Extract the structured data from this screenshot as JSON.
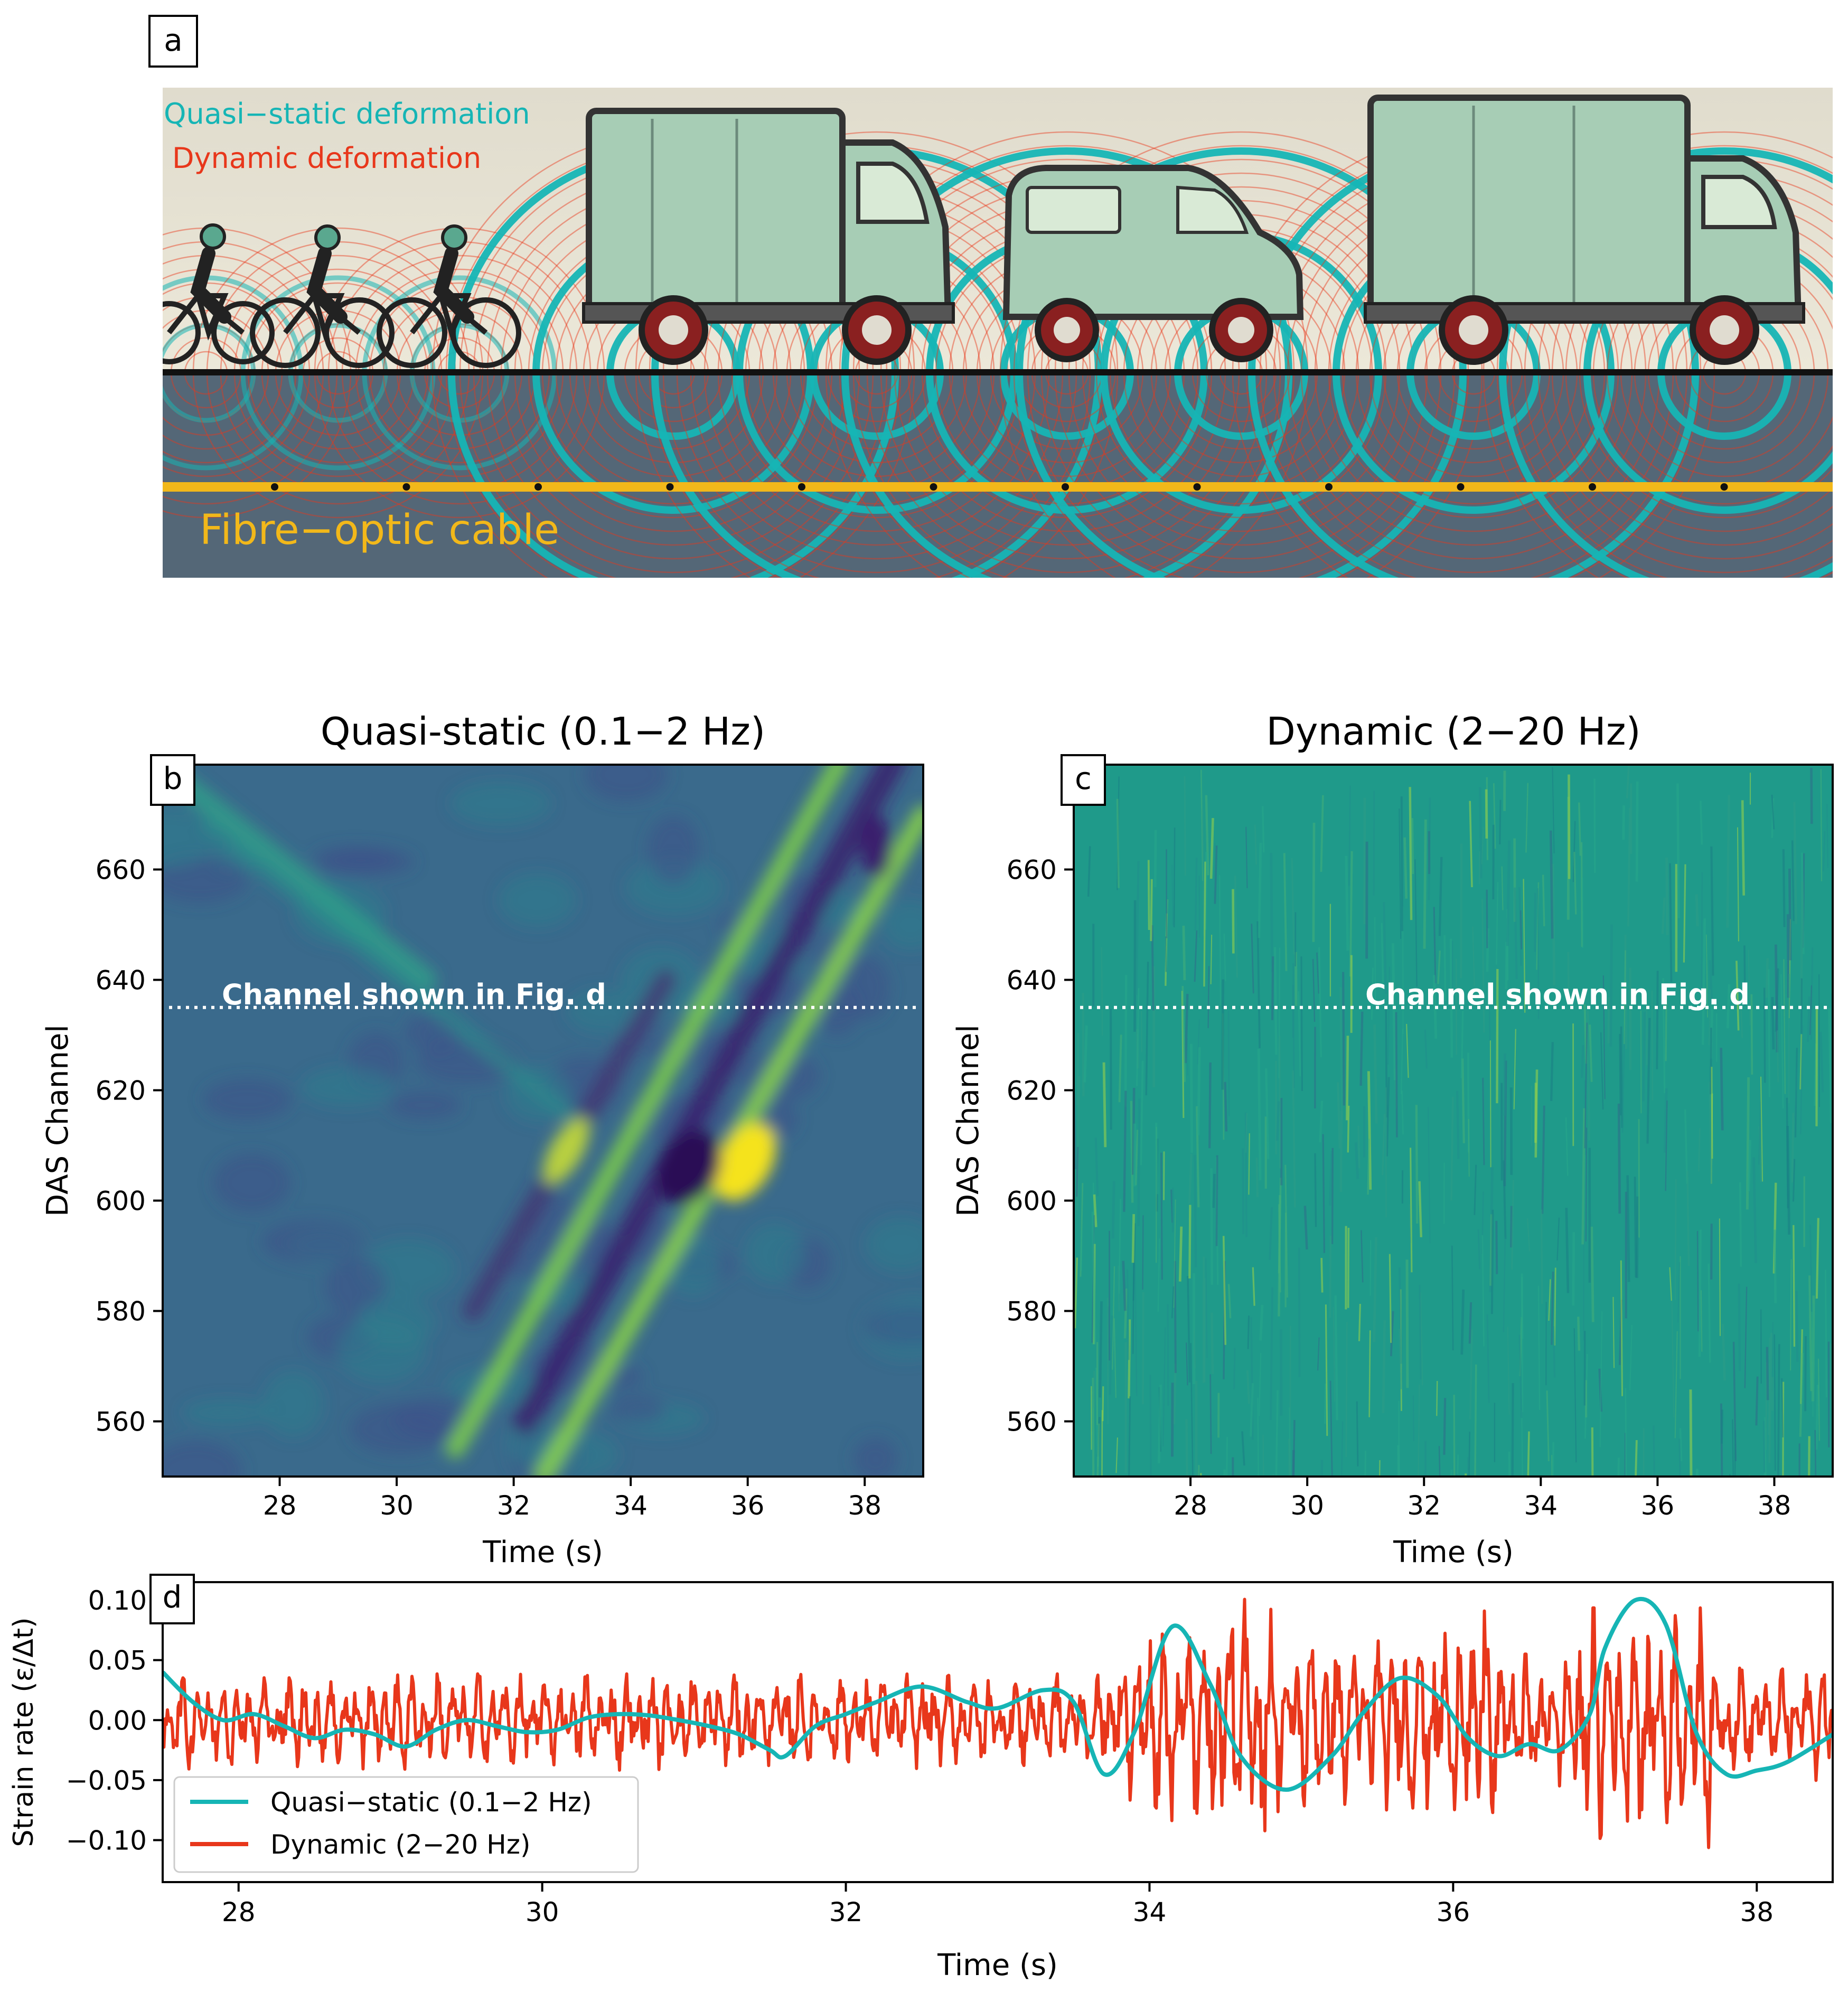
{
  "panel_labels": {
    "a": "a",
    "b": "b",
    "c": "c",
    "d": "d"
  },
  "panel_a": {
    "label_quasi": "Quasi−static deformation",
    "label_dynamic": "Dynamic deformation",
    "label_cable": "Fibre−optic cable",
    "colors": {
      "quasi": "#16b5b5",
      "dynamic": "#e8371b",
      "cable": "#f2b81a",
      "ground": "#546777",
      "sky": "#e3dfd0",
      "vehicle": "#a7cdb5"
    },
    "vehicles": [
      "bicycle-icon",
      "bicycle-icon",
      "bicycle-icon",
      "box-truck-icon",
      "van-icon",
      "box-truck-icon"
    ]
  },
  "chart_data": [
    {
      "id": "b",
      "type": "heatmap",
      "title": "Quasi-static (0.1−2 Hz)",
      "xlabel": "Time (s)",
      "ylabel": "DAS Channel",
      "xlim": [
        26,
        39
      ],
      "ylim": [
        550,
        679
      ],
      "xticks": [
        28,
        30,
        32,
        34,
        36,
        38
      ],
      "yticks": [
        560,
        580,
        600,
        620,
        640,
        660
      ],
      "colormap": "viridis",
      "annotation": {
        "text": "Channel shown in Fig. d",
        "channel": 635
      }
    },
    {
      "id": "c",
      "type": "heatmap",
      "title": "Dynamic (2−20 Hz)",
      "xlabel": "Time (s)",
      "ylabel": "DAS Channel",
      "xlim": [
        26,
        39
      ],
      "ylim": [
        550,
        679
      ],
      "xticks": [
        28,
        30,
        32,
        34,
        36,
        38
      ],
      "yticks": [
        560,
        580,
        600,
        620,
        640,
        660
      ],
      "colormap": "viridis",
      "annotation": {
        "text": "Channel shown in Fig. d",
        "channel": 635
      }
    },
    {
      "id": "d",
      "type": "line",
      "xlabel": "Time (s)",
      "ylabel": "Strain rate (ε/Δt)",
      "xlim": [
        27.5,
        38.5
      ],
      "ylim": [
        -0.135,
        0.115
      ],
      "xticks": [
        28,
        30,
        32,
        34,
        36,
        38
      ],
      "yticks": [
        -0.1,
        -0.05,
        0.0,
        0.05,
        0.1
      ],
      "ytick_labels": [
        "−0.10",
        "−0.05",
        "0.00",
        "0.05",
        "0.10"
      ],
      "legend": "lower-left",
      "series": [
        {
          "name": "Quasi−static (0.1−2 Hz)",
          "color": "#16b5b5",
          "x": [
            27.5,
            27.7,
            27.9,
            28.1,
            28.3,
            28.5,
            28.7,
            28.9,
            29.1,
            29.3,
            29.5,
            29.7,
            29.9,
            30.1,
            30.3,
            30.5,
            30.7,
            30.9,
            31.1,
            31.3,
            31.5,
            31.6,
            31.8,
            32.0,
            32.2,
            32.5,
            32.8,
            33.0,
            33.3,
            33.5,
            33.7,
            33.9,
            34.15,
            34.4,
            34.6,
            34.9,
            35.2,
            35.4,
            35.65,
            35.9,
            36.1,
            36.3,
            36.5,
            36.7,
            36.9,
            37.0,
            37.2,
            37.4,
            37.6,
            37.8,
            38.0,
            38.2,
            38.5
          ],
          "y": [
            0.04,
            0.015,
            0.0,
            0.005,
            -0.005,
            -0.015,
            -0.008,
            -0.012,
            -0.022,
            -0.008,
            0.0,
            -0.005,
            -0.01,
            -0.008,
            0.002,
            0.005,
            0.004,
            0.0,
            -0.005,
            -0.012,
            -0.025,
            -0.03,
            -0.005,
            0.005,
            0.015,
            0.028,
            0.015,
            0.01,
            0.025,
            0.015,
            -0.045,
            -0.01,
            0.078,
            0.03,
            -0.03,
            -0.058,
            -0.03,
            0.005,
            0.035,
            0.02,
            -0.015,
            -0.03,
            -0.02,
            -0.025,
            0.005,
            0.06,
            0.1,
            0.08,
            -0.01,
            -0.045,
            -0.042,
            -0.035,
            -0.012
          ]
        },
        {
          "name": "Dynamic (2−20 Hz)",
          "color": "#e8371b",
          "x": [
            27.5,
            38.5
          ],
          "y": [
            0.0,
            0.0
          ],
          "note_range": [
            -0.125,
            0.098
          ]
        }
      ]
    }
  ]
}
